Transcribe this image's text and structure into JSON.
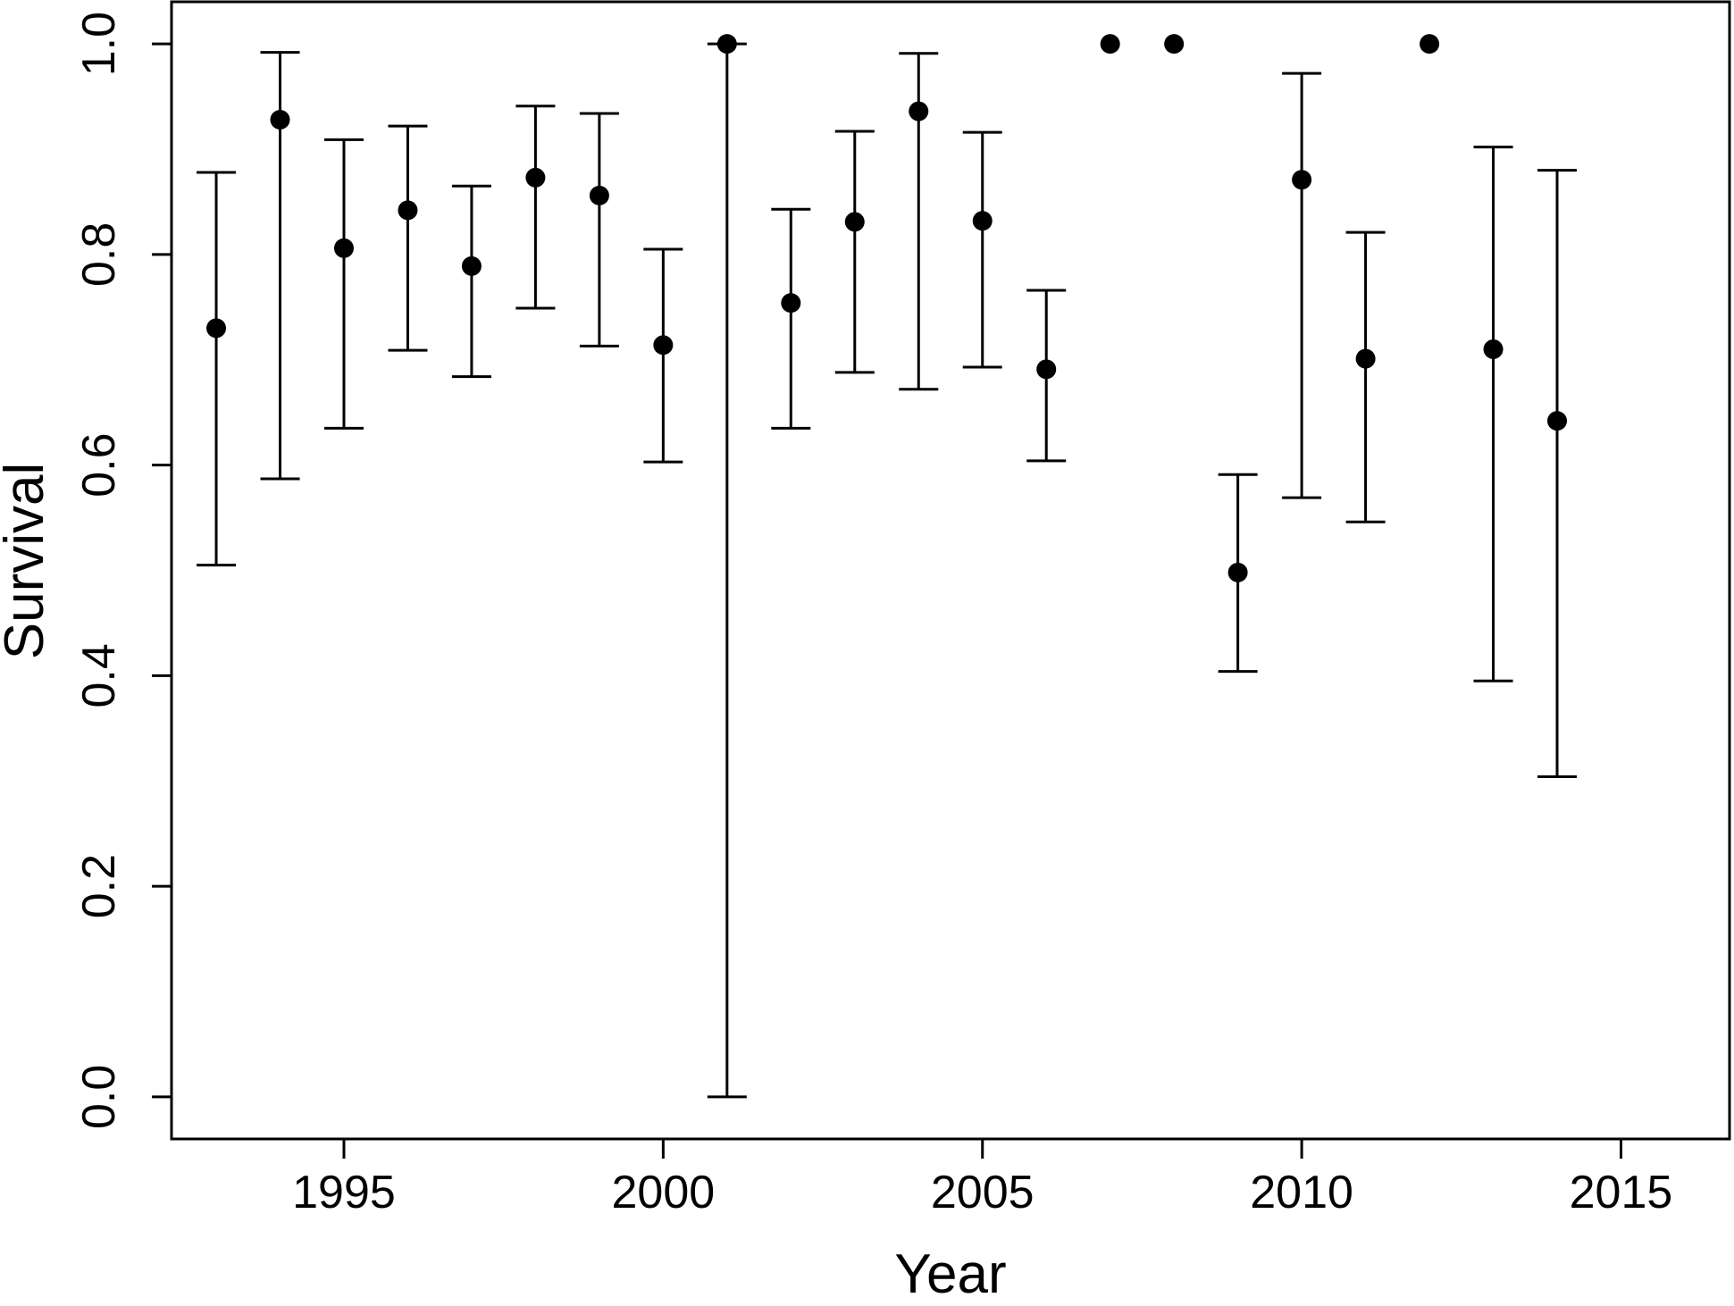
{
  "chart_data": {
    "type": "scatter",
    "title": "",
    "xlabel": "Year",
    "ylabel": "Survival",
    "xlim": [
      1992.3,
      2016.7
    ],
    "ylim": [
      -0.04,
      1.04
    ],
    "xticks": [
      1995,
      2000,
      2005,
      2010,
      2015
    ],
    "yticks": [
      0.0,
      0.2,
      0.4,
      0.6,
      0.8,
      1.0
    ],
    "xtick_labels": [
      "1995",
      "2000",
      "2005",
      "2010",
      "2015"
    ],
    "ytick_labels": [
      "0.0",
      "0.2",
      "0.4",
      "0.6",
      "0.8",
      "1.0"
    ],
    "grid": false,
    "series": [
      {
        "points": [
          {
            "x": 1993,
            "y": 0.73,
            "lower": 0.505,
            "upper": 0.878
          },
          {
            "x": 1994,
            "y": 0.928,
            "lower": 0.587,
            "upper": 0.992
          },
          {
            "x": 1995,
            "y": 0.806,
            "lower": 0.635,
            "upper": 0.909
          },
          {
            "x": 1996,
            "y": 0.842,
            "lower": 0.709,
            "upper": 0.922
          },
          {
            "x": 1997,
            "y": 0.789,
            "lower": 0.684,
            "upper": 0.865
          },
          {
            "x": 1998,
            "y": 0.873,
            "lower": 0.749,
            "upper": 0.941
          },
          {
            "x": 1999,
            "y": 0.856,
            "lower": 0.713,
            "upper": 0.934
          },
          {
            "x": 2000,
            "y": 0.714,
            "lower": 0.603,
            "upper": 0.805
          },
          {
            "x": 2001,
            "y": 1.0,
            "lower": 0.0,
            "upper": 1.0
          },
          {
            "x": 2002,
            "y": 0.754,
            "lower": 0.635,
            "upper": 0.843
          },
          {
            "x": 2003,
            "y": 0.831,
            "lower": 0.688,
            "upper": 0.917
          },
          {
            "x": 2004,
            "y": 0.936,
            "lower": 0.672,
            "upper": 0.991
          },
          {
            "x": 2005,
            "y": 0.832,
            "lower": 0.693,
            "upper": 0.916
          },
          {
            "x": 2006,
            "y": 0.691,
            "lower": 0.604,
            "upper": 0.766
          },
          {
            "x": 2007,
            "y": 1.0
          },
          {
            "x": 2008,
            "y": 1.0
          },
          {
            "x": 2009,
            "y": 0.498,
            "lower": 0.404,
            "upper": 0.591
          },
          {
            "x": 2010,
            "y": 0.871,
            "lower": 0.569,
            "upper": 0.972
          },
          {
            "x": 2011,
            "y": 0.701,
            "lower": 0.546,
            "upper": 0.821
          },
          {
            "x": 2012,
            "y": 1.0
          },
          {
            "x": 2013,
            "y": 0.71,
            "lower": 0.395,
            "upper": 0.902
          },
          {
            "x": 2014,
            "y": 0.642,
            "lower": 0.304,
            "upper": 0.88
          }
        ]
      }
    ]
  }
}
